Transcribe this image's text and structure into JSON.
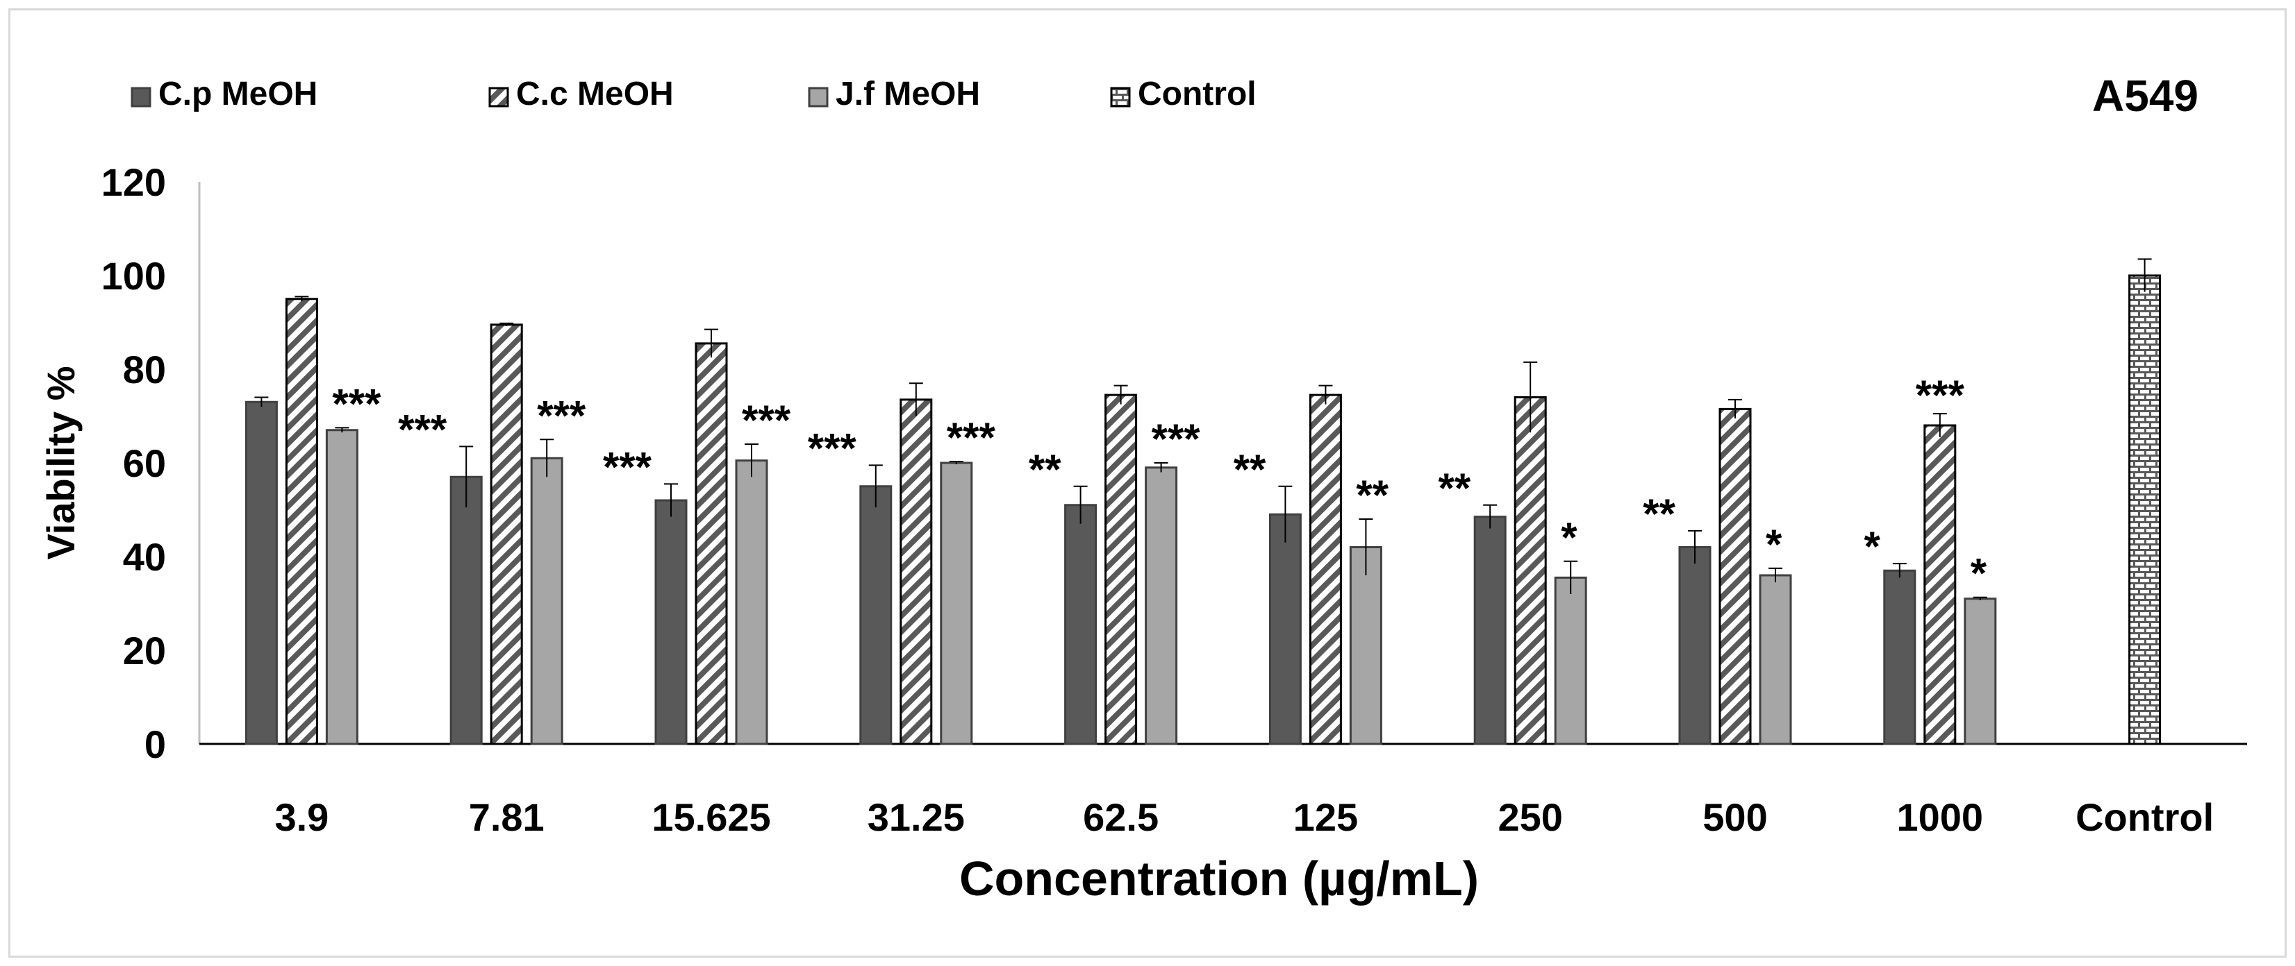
{
  "chart_data": {
    "type": "bar",
    "title": "A549",
    "xlabel": "Concentration (µg/mL)",
    "ylabel": "Viability %",
    "ylim": [
      0,
      120
    ],
    "yticks": [
      "0",
      "20",
      "40",
      "60",
      "80",
      "100",
      "120"
    ],
    "categories": [
      "3.9",
      "7.81",
      "15.625",
      "31.25",
      "62.5",
      "125",
      "250",
      "500",
      "1000",
      "Control"
    ],
    "legend_position": "top-left",
    "series": [
      {
        "name": "C.p MeOH",
        "pattern": "solid-dark",
        "values": [
          73,
          57,
          52,
          55,
          51,
          49,
          48.5,
          42,
          37,
          null
        ],
        "errors": [
          1,
          6.5,
          3.5,
          4.5,
          4,
          6,
          2.5,
          3.5,
          1.5,
          null
        ],
        "annotations": [
          "",
          "***",
          "***",
          "***",
          "**",
          "**",
          "**",
          "**",
          "*",
          ""
        ]
      },
      {
        "name": "C.c MeOH",
        "pattern": "diagonal-hatch",
        "values": [
          95,
          89.5,
          85.5,
          73.5,
          74.5,
          74.5,
          74,
          71.5,
          68,
          null
        ],
        "errors": [
          0.5,
          0.3,
          3,
          3.5,
          2,
          2,
          7.5,
          2,
          2.5,
          null
        ],
        "annotations": [
          "",
          "",
          "",
          "",
          "",
          "",
          "",
          "",
          "***",
          ""
        ]
      },
      {
        "name": "J.f MeOH",
        "pattern": "solid-light",
        "values": [
          67,
          61,
          60.5,
          60,
          59,
          42,
          35.5,
          36,
          31,
          null
        ],
        "errors": [
          0.5,
          4,
          3.5,
          0.3,
          1,
          6,
          3.5,
          1.5,
          0.3,
          null
        ],
        "annotations": [
          "***",
          "***",
          "***",
          "***",
          "***",
          "**",
          "*",
          "*",
          "*",
          ""
        ]
      },
      {
        "name": "Control",
        "pattern": "grid-hatch",
        "values": [
          null,
          null,
          null,
          null,
          null,
          null,
          null,
          null,
          null,
          100
        ],
        "errors": [
          null,
          null,
          null,
          null,
          null,
          null,
          null,
          null,
          null,
          3.5
        ],
        "annotations": [
          "",
          "",
          "",
          "",
          "",
          "",
          "",
          "",
          "",
          ""
        ]
      }
    ]
  }
}
